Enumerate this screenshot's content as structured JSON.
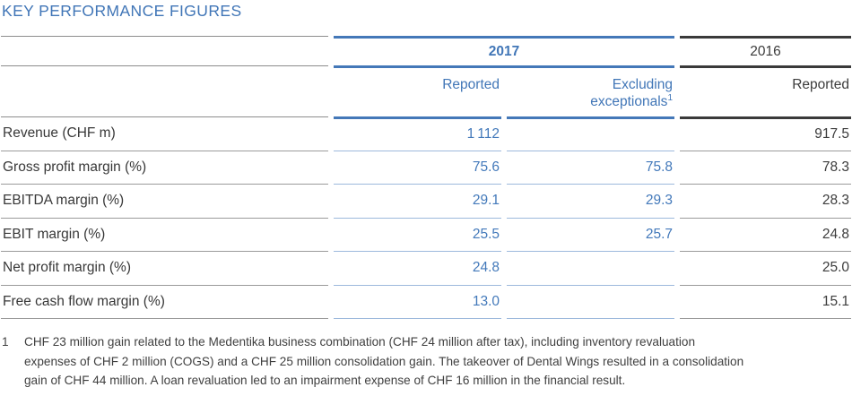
{
  "title": "KEY PERFORMANCE FIGURES",
  "colors": {
    "accent_blue": "#4478b8",
    "light_blue_rule": "#9db9dc",
    "dark_rule": "#3a3a3a",
    "gray_rule": "#9b9b9b",
    "blue_text": "#4176b7",
    "dark_text": "#3c3c3c"
  },
  "table": {
    "groups": {
      "y2017": "2017",
      "y2016": "2016"
    },
    "subheaders": {
      "reported_2017": "Reported",
      "excluding_line1": "Excluding",
      "excluding_line2": "exceptionals",
      "excluding_footnote_ref": "1",
      "reported_2016": "Reported"
    },
    "rows": [
      {
        "label": "Revenue (CHF m)",
        "reported_2017": "1 112",
        "excluding_2017": "",
        "reported_2016": "917.5"
      },
      {
        "label": "Gross profit margin (%)",
        "reported_2017": "75.6",
        "excluding_2017": "75.8",
        "reported_2016": "78.3"
      },
      {
        "label": "EBITDA margin (%)",
        "reported_2017": "29.1",
        "excluding_2017": "29.3",
        "reported_2016": "28.3"
      },
      {
        "label": "EBIT margin (%)",
        "reported_2017": "25.5",
        "excluding_2017": "25.7",
        "reported_2016": "24.8"
      },
      {
        "label": "Net profit margin (%)",
        "reported_2017": "24.8",
        "excluding_2017": "",
        "reported_2016": "25.0"
      },
      {
        "label": "Free cash flow margin (%)",
        "reported_2017": "13.0",
        "excluding_2017": "",
        "reported_2016": "15.1"
      }
    ]
  },
  "footnote": {
    "marker": "1",
    "lines": [
      "CHF 23 million gain related to the Medentika business combination (CHF 24 million after tax), including inventory revaluation",
      "expenses of CHF 2 million (COGS) and a CHF 25 million consolidation gain. The takeover of Dental Wings resulted in a consolidation",
      "gain of CHF 44 million. A loan revaluation led to an impairment expense of CHF 16 million in the financial result."
    ]
  }
}
